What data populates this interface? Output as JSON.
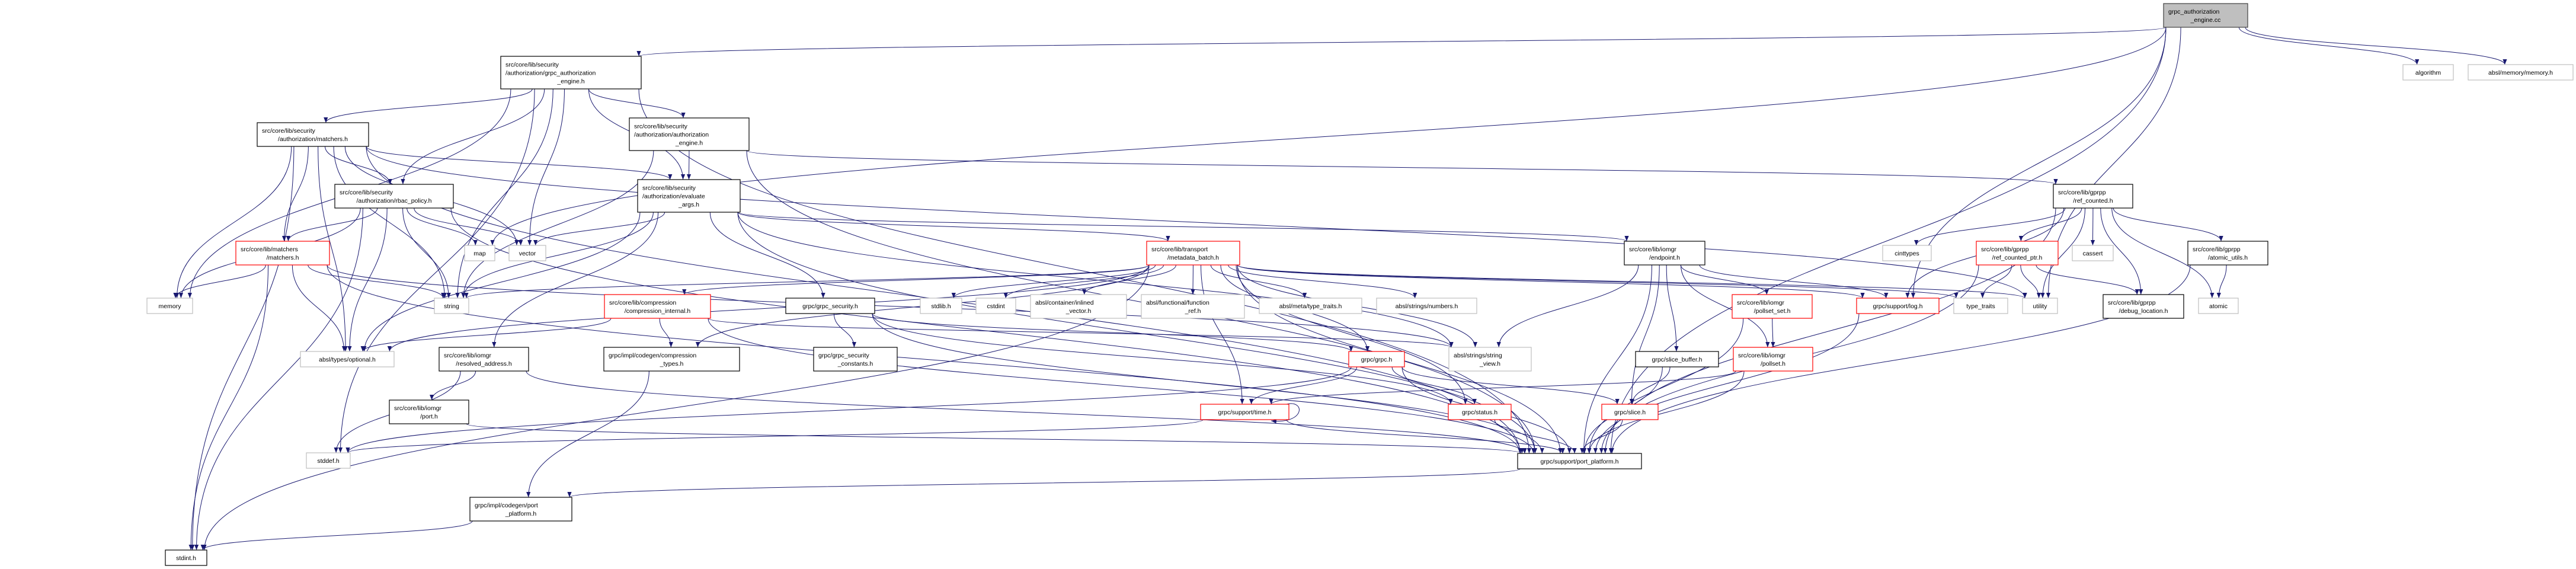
{
  "colors": {
    "edge": "#191970",
    "root_fill": "#bfbfbf",
    "root_border": "#404040",
    "documented_border": "#000000",
    "truncated_border": "#ff0000",
    "external_border": "#bfbfbf"
  },
  "nodes": [
    {
      "id": "cc",
      "kind": "root",
      "lines": [
        "grpc_authorization",
        "_engine.cc"
      ]
    },
    {
      "id": "gae_h",
      "kind": "documented",
      "lines": [
        "src/core/lib/security",
        "/authorization/grpc_authorization",
        "_engine.h"
      ]
    },
    {
      "id": "sec_matchers",
      "kind": "documented",
      "lines": [
        "src/core/lib/security",
        "/authorization/matchers.h"
      ]
    },
    {
      "id": "ae_h",
      "kind": "documented",
      "lines": [
        "src/core/lib/security",
        "/authorization/authorization",
        "_engine.h"
      ]
    },
    {
      "id": "rbac",
      "kind": "documented",
      "lines": [
        "src/core/lib/security",
        "/authorization/rbac_policy.h"
      ]
    },
    {
      "id": "eval",
      "kind": "documented",
      "lines": [
        "src/core/lib/security",
        "/authorization/evaluate",
        "_args.h"
      ]
    },
    {
      "id": "lib_matchers",
      "kind": "truncated",
      "lines": [
        "src/core/lib/matchers",
        "/matchers.h"
      ]
    },
    {
      "id": "map",
      "kind": "external",
      "lines": [
        "map"
      ]
    },
    {
      "id": "vector",
      "kind": "external",
      "lines": [
        "vector"
      ]
    },
    {
      "id": "metadata",
      "kind": "truncated",
      "lines": [
        "src/core/lib/transport",
        "/metadata_batch.h"
      ]
    },
    {
      "id": "endpoint",
      "kind": "documented",
      "lines": [
        "src/core/lib/iomgr",
        "/endpoint.h"
      ]
    },
    {
      "id": "ref_counted",
      "kind": "documented",
      "lines": [
        "src/core/lib/gprpp",
        "/ref_counted.h"
      ]
    },
    {
      "id": "cinttypes",
      "kind": "external",
      "lines": [
        "cinttypes"
      ]
    },
    {
      "id": "rcptr",
      "kind": "truncated",
      "lines": [
        "src/core/lib/gprpp",
        "/ref_counted_ptr.h"
      ]
    },
    {
      "id": "cassert",
      "kind": "external",
      "lines": [
        "cassert"
      ]
    },
    {
      "id": "atomic_utils",
      "kind": "documented",
      "lines": [
        "src/core/lib/gprpp",
        "/atomic_utils.h"
      ]
    },
    {
      "id": "algorithm",
      "kind": "external",
      "lines": [
        "algorithm"
      ]
    },
    {
      "id": "memory_h",
      "kind": "external",
      "lines": [
        "absl/memory/memory.h"
      ]
    },
    {
      "id": "memory",
      "kind": "external",
      "lines": [
        "memory"
      ]
    },
    {
      "id": "string",
      "kind": "external",
      "lines": [
        "string"
      ]
    },
    {
      "id": "comp_int",
      "kind": "truncated",
      "lines": [
        "src/core/lib/compression",
        "/compression_internal.h"
      ]
    },
    {
      "id": "grpc_security",
      "kind": "documented",
      "lines": [
        "grpc/grpc_security.h"
      ]
    },
    {
      "id": "stdlib",
      "kind": "external",
      "lines": [
        "stdlib.h"
      ]
    },
    {
      "id": "cstdint",
      "kind": "external",
      "lines": [
        "cstdint"
      ]
    },
    {
      "id": "inlined",
      "kind": "external",
      "lines": [
        "absl/container/inlined",
        "_vector.h"
      ]
    },
    {
      "id": "fref",
      "kind": "external",
      "lines": [
        "absl/functional/function",
        "_ref.h"
      ]
    },
    {
      "id": "type_traits_h",
      "kind": "external",
      "lines": [
        "absl/meta/type_traits.h"
      ]
    },
    {
      "id": "numbers",
      "kind": "external",
      "lines": [
        "absl/strings/numbers.h"
      ]
    },
    {
      "id": "pollset_set",
      "kind": "truncated",
      "lines": [
        "src/core/lib/iomgr",
        "/pollset_set.h"
      ]
    },
    {
      "id": "log",
      "kind": "truncated",
      "lines": [
        "grpc/support/log.h"
      ]
    },
    {
      "id": "type_traits",
      "kind": "external",
      "lines": [
        "type_traits"
      ]
    },
    {
      "id": "utility",
      "kind": "external",
      "lines": [
        "utility"
      ]
    },
    {
      "id": "debug_loc",
      "kind": "documented",
      "lines": [
        "src/core/lib/gprpp",
        "/debug_location.h"
      ]
    },
    {
      "id": "atomic",
      "kind": "external",
      "lines": [
        "atomic"
      ]
    },
    {
      "id": "optional",
      "kind": "external",
      "lines": [
        "absl/types/optional.h"
      ]
    },
    {
      "id": "resolved",
      "kind": "documented",
      "lines": [
        "src/core/lib/iomgr",
        "/resolved_address.h"
      ]
    },
    {
      "id": "comp_types",
      "kind": "documented",
      "lines": [
        "grpc/impl/codegen/compression",
        "_types.h"
      ]
    },
    {
      "id": "gs_const",
      "kind": "documented",
      "lines": [
        "grpc/grpc_security",
        "_constants.h"
      ]
    },
    {
      "id": "grpc",
      "kind": "truncated",
      "lines": [
        "grpc/grpc.h"
      ]
    },
    {
      "id": "string_view",
      "kind": "external",
      "lines": [
        "absl/strings/string",
        "_view.h"
      ]
    },
    {
      "id": "slice_buffer",
      "kind": "documented",
      "lines": [
        "grpc/slice_buffer.h"
      ]
    },
    {
      "id": "pollset",
      "kind": "truncated",
      "lines": [
        "src/core/lib/iomgr",
        "/pollset.h"
      ]
    },
    {
      "id": "port",
      "kind": "documented",
      "lines": [
        "src/core/lib/iomgr",
        "/port.h"
      ]
    },
    {
      "id": "time",
      "kind": "truncated",
      "lines": [
        "grpc/support/time.h"
      ]
    },
    {
      "id": "status",
      "kind": "truncated",
      "lines": [
        "grpc/status.h"
      ]
    },
    {
      "id": "slice",
      "kind": "truncated",
      "lines": [
        "grpc/slice.h"
      ]
    },
    {
      "id": "stddef",
      "kind": "external",
      "lines": [
        "stddef.h"
      ]
    },
    {
      "id": "port_platform",
      "kind": "documented",
      "lines": [
        "grpc/support/port_platform.h"
      ]
    },
    {
      "id": "codegen_pp",
      "kind": "documented",
      "lines": [
        "grpc/impl/codegen/port",
        "_platform.h"
      ]
    },
    {
      "id": "stdint",
      "kind": "documented",
      "lines": [
        "stdint.h"
      ]
    }
  ],
  "edges": [
    [
      "cc",
      "gae_h"
    ],
    [
      "cc",
      "map"
    ],
    [
      "cc",
      "log"
    ],
    [
      "cc",
      "algorithm"
    ],
    [
      "cc",
      "memory_h"
    ],
    [
      "cc",
      "port_platform"
    ],
    [
      "cc",
      "utility"
    ],
    [
      "gae_h",
      "sec_matchers"
    ],
    [
      "gae_h",
      "rbac"
    ],
    [
      "gae_h",
      "ae_h"
    ],
    [
      "gae_h",
      "eval"
    ],
    [
      "gae_h",
      "memory"
    ],
    [
      "gae_h",
      "string"
    ],
    [
      "gae_h",
      "vector"
    ],
    [
      "gae_h",
      "stddef"
    ],
    [
      "gae_h",
      "port_platform"
    ],
    [
      "sec_matchers",
      "rbac"
    ],
    [
      "sec_matchers",
      "lib_matchers"
    ],
    [
      "sec_matchers",
      "eval"
    ],
    [
      "sec_matchers",
      "memory"
    ],
    [
      "sec_matchers",
      "string"
    ],
    [
      "sec_matchers",
      "optional"
    ],
    [
      "sec_matchers",
      "vector"
    ],
    [
      "sec_matchers",
      "stdint"
    ],
    [
      "sec_matchers",
      "port_platform"
    ],
    [
      "sec_matchers",
      "utility"
    ],
    [
      "rbac",
      "lib_matchers"
    ],
    [
      "rbac",
      "map"
    ],
    [
      "rbac",
      "vector"
    ],
    [
      "rbac",
      "string"
    ],
    [
      "rbac",
      "memory"
    ],
    [
      "rbac",
      "optional"
    ],
    [
      "rbac",
      "stdint"
    ],
    [
      "rbac",
      "port_platform"
    ],
    [
      "lib_matchers",
      "memory"
    ],
    [
      "lib_matchers",
      "string"
    ],
    [
      "lib_matchers",
      "optional"
    ],
    [
      "lib_matchers",
      "stdint"
    ],
    [
      "lib_matchers",
      "port_platform"
    ],
    [
      "lib_matchers",
      "string_view"
    ],
    [
      "ae_h",
      "eval"
    ],
    [
      "ae_h",
      "ref_counted"
    ],
    [
      "ae_h",
      "string"
    ],
    [
      "ae_h",
      "port_platform"
    ],
    [
      "eval",
      "metadata"
    ],
    [
      "eval",
      "endpoint"
    ],
    [
      "eval",
      "resolved"
    ],
    [
      "eval",
      "grpc_security"
    ],
    [
      "eval",
      "string"
    ],
    [
      "eval",
      "vector"
    ],
    [
      "eval",
      "optional"
    ],
    [
      "eval",
      "string_view"
    ],
    [
      "eval",
      "port_platform"
    ],
    [
      "metadata",
      "comp_int"
    ],
    [
      "metadata",
      "comp_types"
    ],
    [
      "metadata",
      "stdlib"
    ],
    [
      "metadata",
      "cstdint"
    ],
    [
      "metadata",
      "inlined"
    ],
    [
      "metadata",
      "fref"
    ],
    [
      "metadata",
      "type_traits_h"
    ],
    [
      "metadata",
      "numbers"
    ],
    [
      "metadata",
      "string_view"
    ],
    [
      "metadata",
      "grpc"
    ],
    [
      "metadata",
      "time"
    ],
    [
      "metadata",
      "status"
    ],
    [
      "metadata",
      "log"
    ],
    [
      "metadata",
      "port_platform"
    ],
    [
      "metadata",
      "string"
    ],
    [
      "metadata",
      "optional"
    ],
    [
      "metadata",
      "type_traits"
    ],
    [
      "metadata",
      "utility"
    ],
    [
      "metadata",
      "stdint"
    ],
    [
      "comp_int",
      "comp_types"
    ],
    [
      "comp_int",
      "optional"
    ],
    [
      "comp_int",
      "string_view"
    ],
    [
      "comp_int",
      "port_platform"
    ],
    [
      "comp_types",
      "codegen_pp"
    ],
    [
      "grpc_security",
      "gs_const"
    ],
    [
      "grpc_security",
      "grpc"
    ],
    [
      "grpc_security",
      "status"
    ],
    [
      "grpc_security",
      "port_platform"
    ],
    [
      "grpc",
      "time"
    ],
    [
      "grpc",
      "status"
    ],
    [
      "grpc",
      "slice"
    ],
    [
      "grpc",
      "port_platform"
    ],
    [
      "grpc",
      "stddef"
    ],
    [
      "time",
      "time"
    ],
    [
      "time",
      "port_platform"
    ],
    [
      "time",
      "stddef"
    ],
    [
      "status",
      "port_platform"
    ],
    [
      "slice",
      "port_platform"
    ],
    [
      "endpoint",
      "pollset_set"
    ],
    [
      "endpoint",
      "pollset"
    ],
    [
      "endpoint",
      "slice_buffer"
    ],
    [
      "endpoint",
      "slice"
    ],
    [
      "endpoint",
      "string_view"
    ],
    [
      "endpoint",
      "port_platform"
    ],
    [
      "endpoint",
      "log"
    ],
    [
      "pollset_set",
      "pollset"
    ],
    [
      "pollset_set",
      "port_platform"
    ],
    [
      "pollset",
      "time"
    ],
    [
      "pollset",
      "port_platform"
    ],
    [
      "slice_buffer",
      "slice"
    ],
    [
      "slice_buffer",
      "port_platform"
    ],
    [
      "log",
      "port_platform"
    ],
    [
      "resolved",
      "port"
    ],
    [
      "resolved",
      "stddef"
    ],
    [
      "resolved",
      "port_platform"
    ],
    [
      "port",
      "port_platform"
    ],
    [
      "port_platform",
      "codegen_pp"
    ],
    [
      "codegen_pp",
      "stdint"
    ],
    [
      "ref_counted",
      "cinttypes"
    ],
    [
      "ref_counted",
      "rcptr"
    ],
    [
      "ref_counted",
      "cassert"
    ],
    [
      "ref_counted",
      "debug_loc"
    ],
    [
      "ref_counted",
      "atomic_utils"
    ],
    [
      "ref_counted",
      "atomic"
    ],
    [
      "ref_counted",
      "log"
    ],
    [
      "ref_counted",
      "port_platform"
    ],
    [
      "ref_counted",
      "utility"
    ],
    [
      "rcptr",
      "type_traits"
    ],
    [
      "rcptr",
      "utility"
    ],
    [
      "rcptr",
      "debug_loc"
    ],
    [
      "rcptr",
      "port_platform"
    ],
    [
      "atomic_utils",
      "atomic"
    ],
    [
      "atomic_utils",
      "port_platform"
    ]
  ]
}
